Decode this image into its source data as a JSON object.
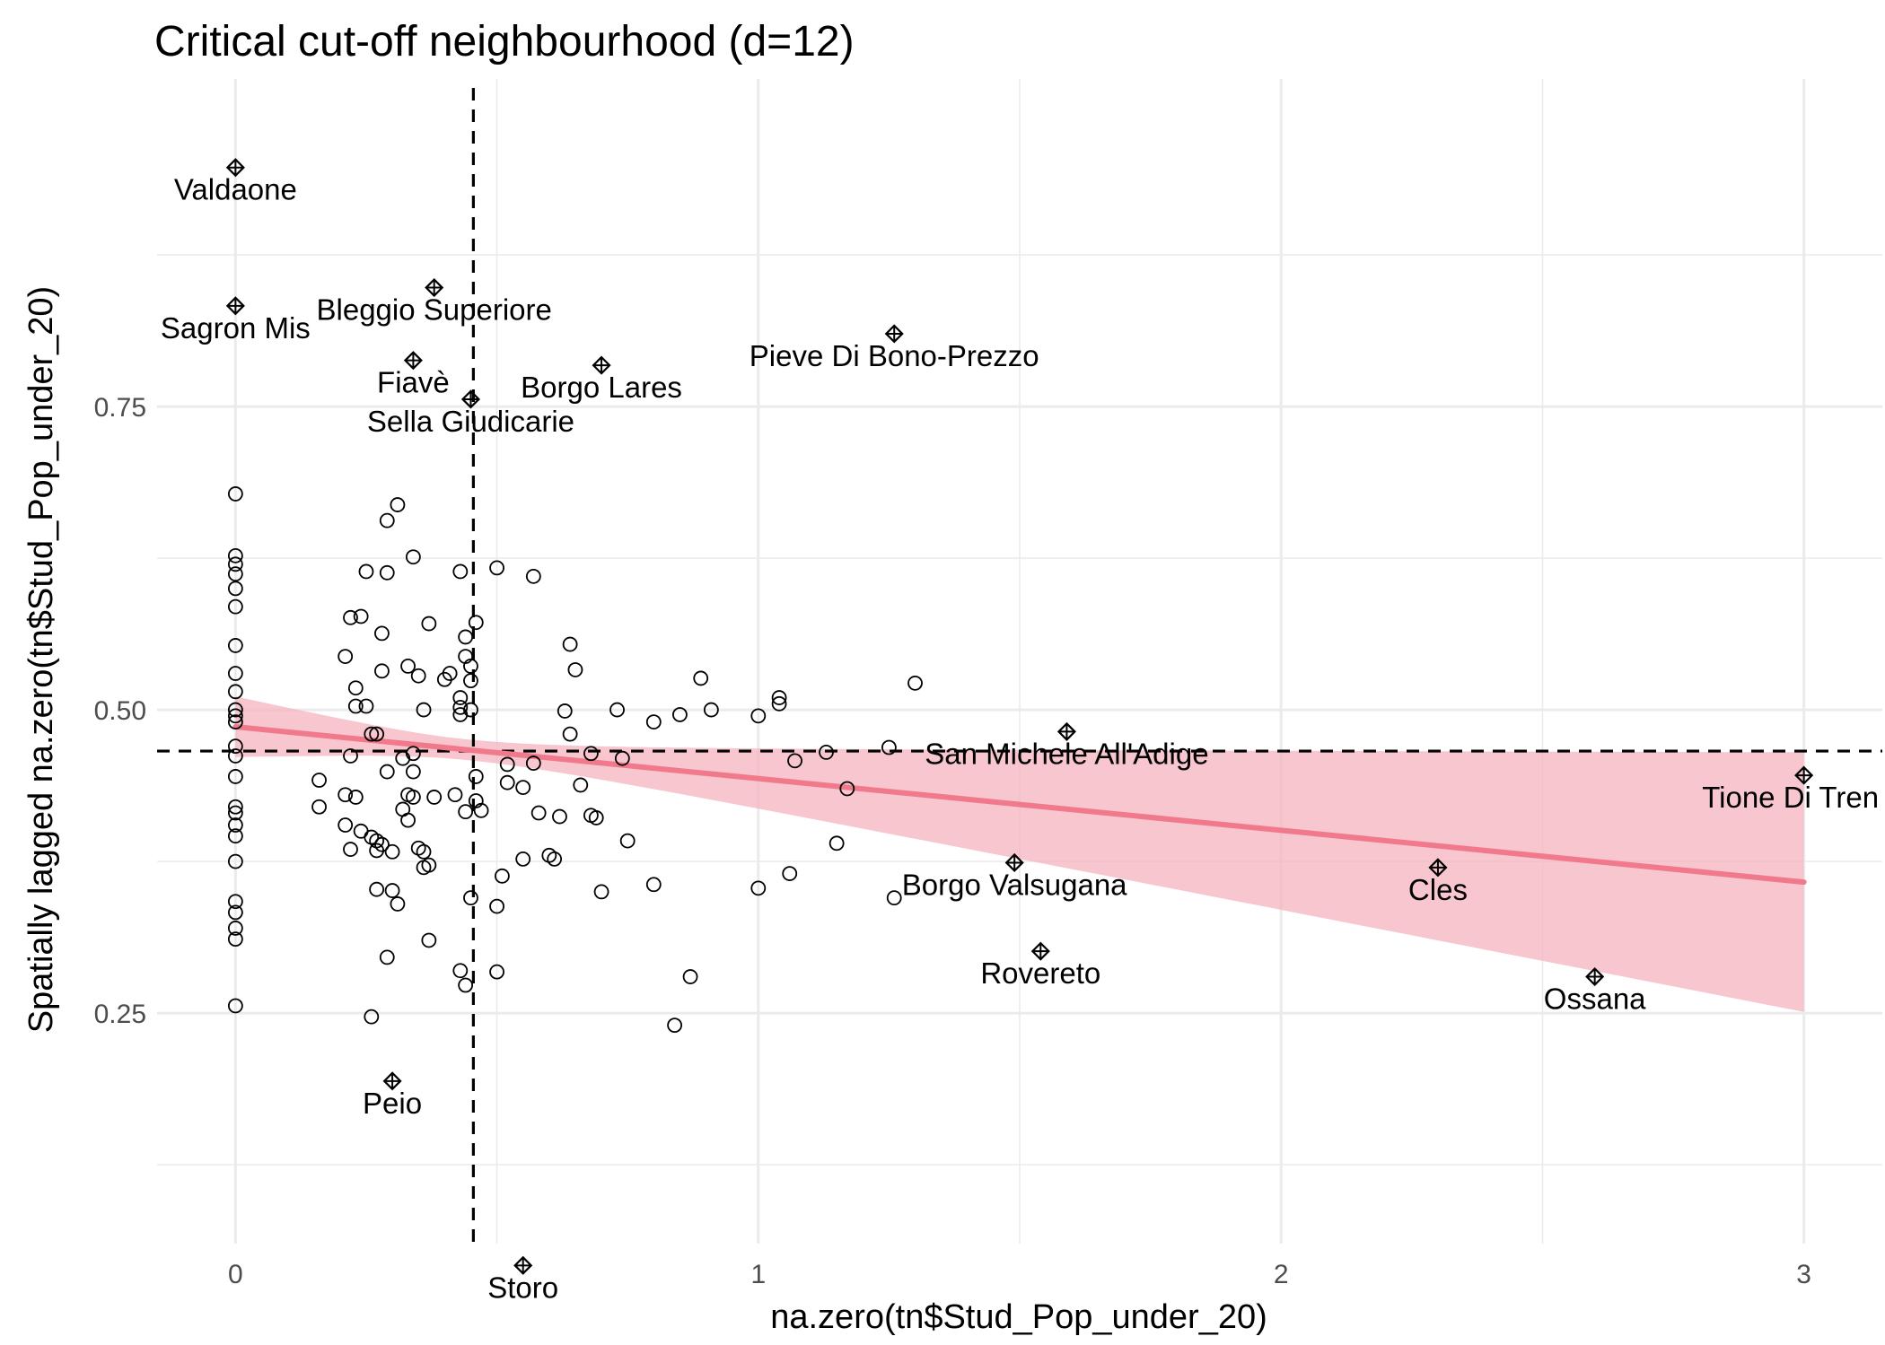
{
  "chart_data": {
    "type": "scatter",
    "title": "Critical cut-off neighbourhood (d=12)",
    "xlabel": "na.zero(tn$Stud_Pop_under_20)",
    "ylabel": "Spatially lagged na.zero(tn$Stud_Pop_under_20)",
    "xlim": [
      -0.15,
      3.15
    ],
    "ylim": [
      0.06,
      1.02
    ],
    "x_ticks": [
      0,
      1,
      2,
      3
    ],
    "x_tick_labels": [
      "0",
      "1",
      "2",
      "3"
    ],
    "y_ticks": [
      0.25,
      0.5,
      0.75
    ],
    "y_tick_labels": [
      "0.25",
      "0.50",
      "0.75"
    ],
    "grid": true,
    "vline_x": 0.455,
    "hline_y": 0.466,
    "fit": {
      "method": "linear",
      "x_range": [
        0,
        3
      ],
      "y_at_start": 0.486,
      "y_at_end": 0.358,
      "ci_lower_start": 0.461,
      "ci_upper_start": 0.511,
      "ci_lower_end": 0.251,
      "ci_upper_end": 0.465,
      "line_color": "#f07a8c",
      "band_color": "#f4b3bf"
    },
    "influential_points": [
      {
        "label": "Valdaone",
        "x": 0.0,
        "y": 0.947
      },
      {
        "label": "Sagron Mis",
        "x": 0.0,
        "y": 0.833
      },
      {
        "label": "Bleggio Superiore",
        "x": 0.38,
        "y": 0.848
      },
      {
        "label": "Fiavè",
        "x": 0.34,
        "y": 0.788
      },
      {
        "label": "Sella Giudicarie",
        "x": 0.45,
        "y": 0.756
      },
      {
        "label": "Borgo Lares",
        "x": 0.7,
        "y": 0.784
      },
      {
        "label": "Pieve Di Bono-Prezzo",
        "x": 1.26,
        "y": 0.81
      },
      {
        "label": "San Michele All'Adige",
        "x": 1.59,
        "y": 0.482
      },
      {
        "label": "Tione Di Tren",
        "x": 3.0,
        "y": 0.446
      },
      {
        "label": "Borgo Valsugana",
        "x": 1.49,
        "y": 0.374
      },
      {
        "label": "Cles",
        "x": 2.3,
        "y": 0.37
      },
      {
        "label": "Rovereto",
        "x": 1.54,
        "y": 0.301
      },
      {
        "label": "Ossana",
        "x": 2.6,
        "y": 0.28
      },
      {
        "label": "Peio",
        "x": 0.3,
        "y": 0.194
      },
      {
        "label": "Storo",
        "x": 0.55,
        "y": 0.042
      }
    ],
    "points": [
      [
        0.0,
        0.678
      ],
      [
        0.0,
        0.627
      ],
      [
        0.0,
        0.62
      ],
      [
        0.0,
        0.612
      ],
      [
        0.0,
        0.6
      ],
      [
        0.0,
        0.585
      ],
      [
        0.0,
        0.553
      ],
      [
        0.0,
        0.53
      ],
      [
        0.0,
        0.515
      ],
      [
        0.0,
        0.5
      ],
      [
        0.0,
        0.495
      ],
      [
        0.0,
        0.49
      ],
      [
        0.0,
        0.47
      ],
      [
        0.0,
        0.462
      ],
      [
        0.0,
        0.445
      ],
      [
        0.0,
        0.42
      ],
      [
        0.0,
        0.415
      ],
      [
        0.0,
        0.405
      ],
      [
        0.0,
        0.396
      ],
      [
        0.0,
        0.375
      ],
      [
        0.0,
        0.342
      ],
      [
        0.0,
        0.333
      ],
      [
        0.0,
        0.32
      ],
      [
        0.0,
        0.311
      ],
      [
        0.0,
        0.256
      ],
      [
        0.16,
        0.442
      ],
      [
        0.16,
        0.42
      ],
      [
        0.21,
        0.544
      ],
      [
        0.21,
        0.43
      ],
      [
        0.21,
        0.405
      ],
      [
        0.22,
        0.576
      ],
      [
        0.22,
        0.462
      ],
      [
        0.22,
        0.385
      ],
      [
        0.23,
        0.518
      ],
      [
        0.23,
        0.503
      ],
      [
        0.23,
        0.428
      ],
      [
        0.24,
        0.577
      ],
      [
        0.24,
        0.4
      ],
      [
        0.25,
        0.614
      ],
      [
        0.25,
        0.503
      ],
      [
        0.26,
        0.48
      ],
      [
        0.26,
        0.395
      ],
      [
        0.26,
        0.247
      ],
      [
        0.27,
        0.48
      ],
      [
        0.27,
        0.392
      ],
      [
        0.27,
        0.384
      ],
      [
        0.27,
        0.352
      ],
      [
        0.28,
        0.563
      ],
      [
        0.28,
        0.532
      ],
      [
        0.28,
        0.389
      ],
      [
        0.29,
        0.656
      ],
      [
        0.29,
        0.613
      ],
      [
        0.29,
        0.449
      ],
      [
        0.29,
        0.296
      ],
      [
        0.3,
        0.383
      ],
      [
        0.3,
        0.351
      ],
      [
        0.31,
        0.669
      ],
      [
        0.31,
        0.34
      ],
      [
        0.32,
        0.46
      ],
      [
        0.32,
        0.418
      ],
      [
        0.33,
        0.536
      ],
      [
        0.33,
        0.43
      ],
      [
        0.33,
        0.409
      ],
      [
        0.34,
        0.626
      ],
      [
        0.34,
        0.464
      ],
      [
        0.34,
        0.449
      ],
      [
        0.34,
        0.428
      ],
      [
        0.35,
        0.528
      ],
      [
        0.35,
        0.386
      ],
      [
        0.36,
        0.5
      ],
      [
        0.36,
        0.383
      ],
      [
        0.36,
        0.37
      ],
      [
        0.37,
        0.571
      ],
      [
        0.37,
        0.372
      ],
      [
        0.37,
        0.31
      ],
      [
        0.38,
        0.428
      ],
      [
        0.4,
        0.525
      ],
      [
        0.41,
        0.53
      ],
      [
        0.42,
        0.43
      ],
      [
        0.43,
        0.614
      ],
      [
        0.43,
        0.51
      ],
      [
        0.43,
        0.502
      ],
      [
        0.43,
        0.496
      ],
      [
        0.43,
        0.285
      ],
      [
        0.44,
        0.56
      ],
      [
        0.44,
        0.544
      ],
      [
        0.44,
        0.416
      ],
      [
        0.44,
        0.273
      ],
      [
        0.45,
        0.536
      ],
      [
        0.45,
        0.524
      ],
      [
        0.45,
        0.5
      ],
      [
        0.45,
        0.345
      ],
      [
        0.46,
        0.572
      ],
      [
        0.46,
        0.445
      ],
      [
        0.46,
        0.425
      ],
      [
        0.47,
        0.417
      ],
      [
        0.5,
        0.617
      ],
      [
        0.5,
        0.338
      ],
      [
        0.5,
        0.284
      ],
      [
        0.51,
        0.363
      ],
      [
        0.52,
        0.455
      ],
      [
        0.52,
        0.44
      ],
      [
        0.55,
        0.377
      ],
      [
        0.55,
        0.436
      ],
      [
        0.57,
        0.61
      ],
      [
        0.57,
        0.456
      ],
      [
        0.58,
        0.415
      ],
      [
        0.6,
        0.38
      ],
      [
        0.61,
        0.377
      ],
      [
        0.62,
        0.412
      ],
      [
        0.63,
        0.499
      ],
      [
        0.64,
        0.554
      ],
      [
        0.64,
        0.48
      ],
      [
        0.65,
        0.533
      ],
      [
        0.66,
        0.438
      ],
      [
        0.68,
        0.464
      ],
      [
        0.68,
        0.413
      ],
      [
        0.69,
        0.411
      ],
      [
        0.7,
        0.35
      ],
      [
        0.73,
        0.5
      ],
      [
        0.74,
        0.46
      ],
      [
        0.75,
        0.392
      ],
      [
        0.8,
        0.49
      ],
      [
        0.8,
        0.356
      ],
      [
        0.84,
        0.24
      ],
      [
        0.85,
        0.496
      ],
      [
        0.87,
        0.28
      ],
      [
        0.89,
        0.526
      ],
      [
        0.91,
        0.5
      ],
      [
        1.0,
        0.495
      ],
      [
        1.0,
        0.353
      ],
      [
        1.04,
        0.51
      ],
      [
        1.04,
        0.505
      ],
      [
        1.06,
        0.365
      ],
      [
        1.07,
        0.458
      ],
      [
        1.13,
        0.465
      ],
      [
        1.15,
        0.39
      ],
      [
        1.17,
        0.435
      ],
      [
        1.25,
        0.469
      ],
      [
        1.26,
        0.345
      ],
      [
        1.3,
        0.522
      ]
    ]
  }
}
